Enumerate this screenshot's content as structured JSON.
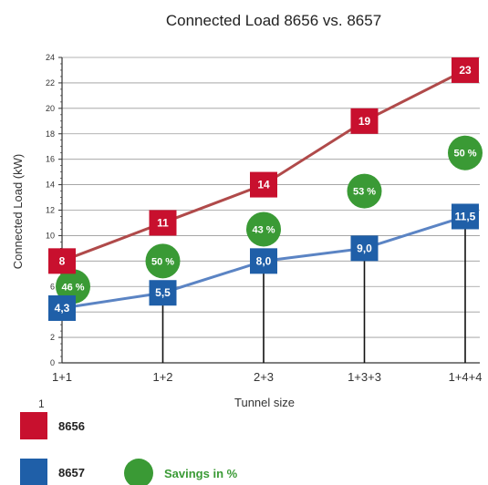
{
  "chart_data": {
    "type": "line",
    "title": "Connected Load 8656 vs. 8657",
    "xlabel": "Tunnel size",
    "ylabel": "Connected Load (kW)",
    "categories": [
      "1+1",
      "1+2",
      "2+3",
      "1+3+3",
      "1+4+4"
    ],
    "ylim": [
      0,
      24
    ],
    "yticks": [
      0,
      2,
      4,
      6,
      8,
      10,
      12,
      14,
      16,
      18,
      20,
      22,
      24
    ],
    "grid": true,
    "series": [
      {
        "name": "8656",
        "color": "#c8102e",
        "line_color": "#b04a4a",
        "values": [
          8,
          11,
          14,
          19,
          23.0
        ],
        "labels": [
          "8",
          "11",
          "14",
          "19",
          "23"
        ]
      },
      {
        "name": "8657",
        "color": "#1f5fa8",
        "line_color": "#5b84c4",
        "values": [
          4.3,
          5.5,
          8.0,
          9.0,
          11.5
        ],
        "labels": [
          "4,3",
          "5,5",
          "8,0",
          "9,0",
          "11,5"
        ]
      }
    ],
    "savings": {
      "name": "Savings in %",
      "color": "#3a9a35",
      "values": [
        46,
        50,
        43,
        53,
        50
      ],
      "labels": [
        "46 %",
        "50 %",
        "43 %",
        "53 %",
        "50 %"
      ],
      "y_positions": [
        6,
        8,
        10.5,
        13.5,
        16.5
      ]
    },
    "legend": {
      "position": "bottom-left",
      "items": [
        "8656",
        "8657",
        "Savings in %"
      ]
    },
    "annotations": [
      "1"
    ]
  }
}
